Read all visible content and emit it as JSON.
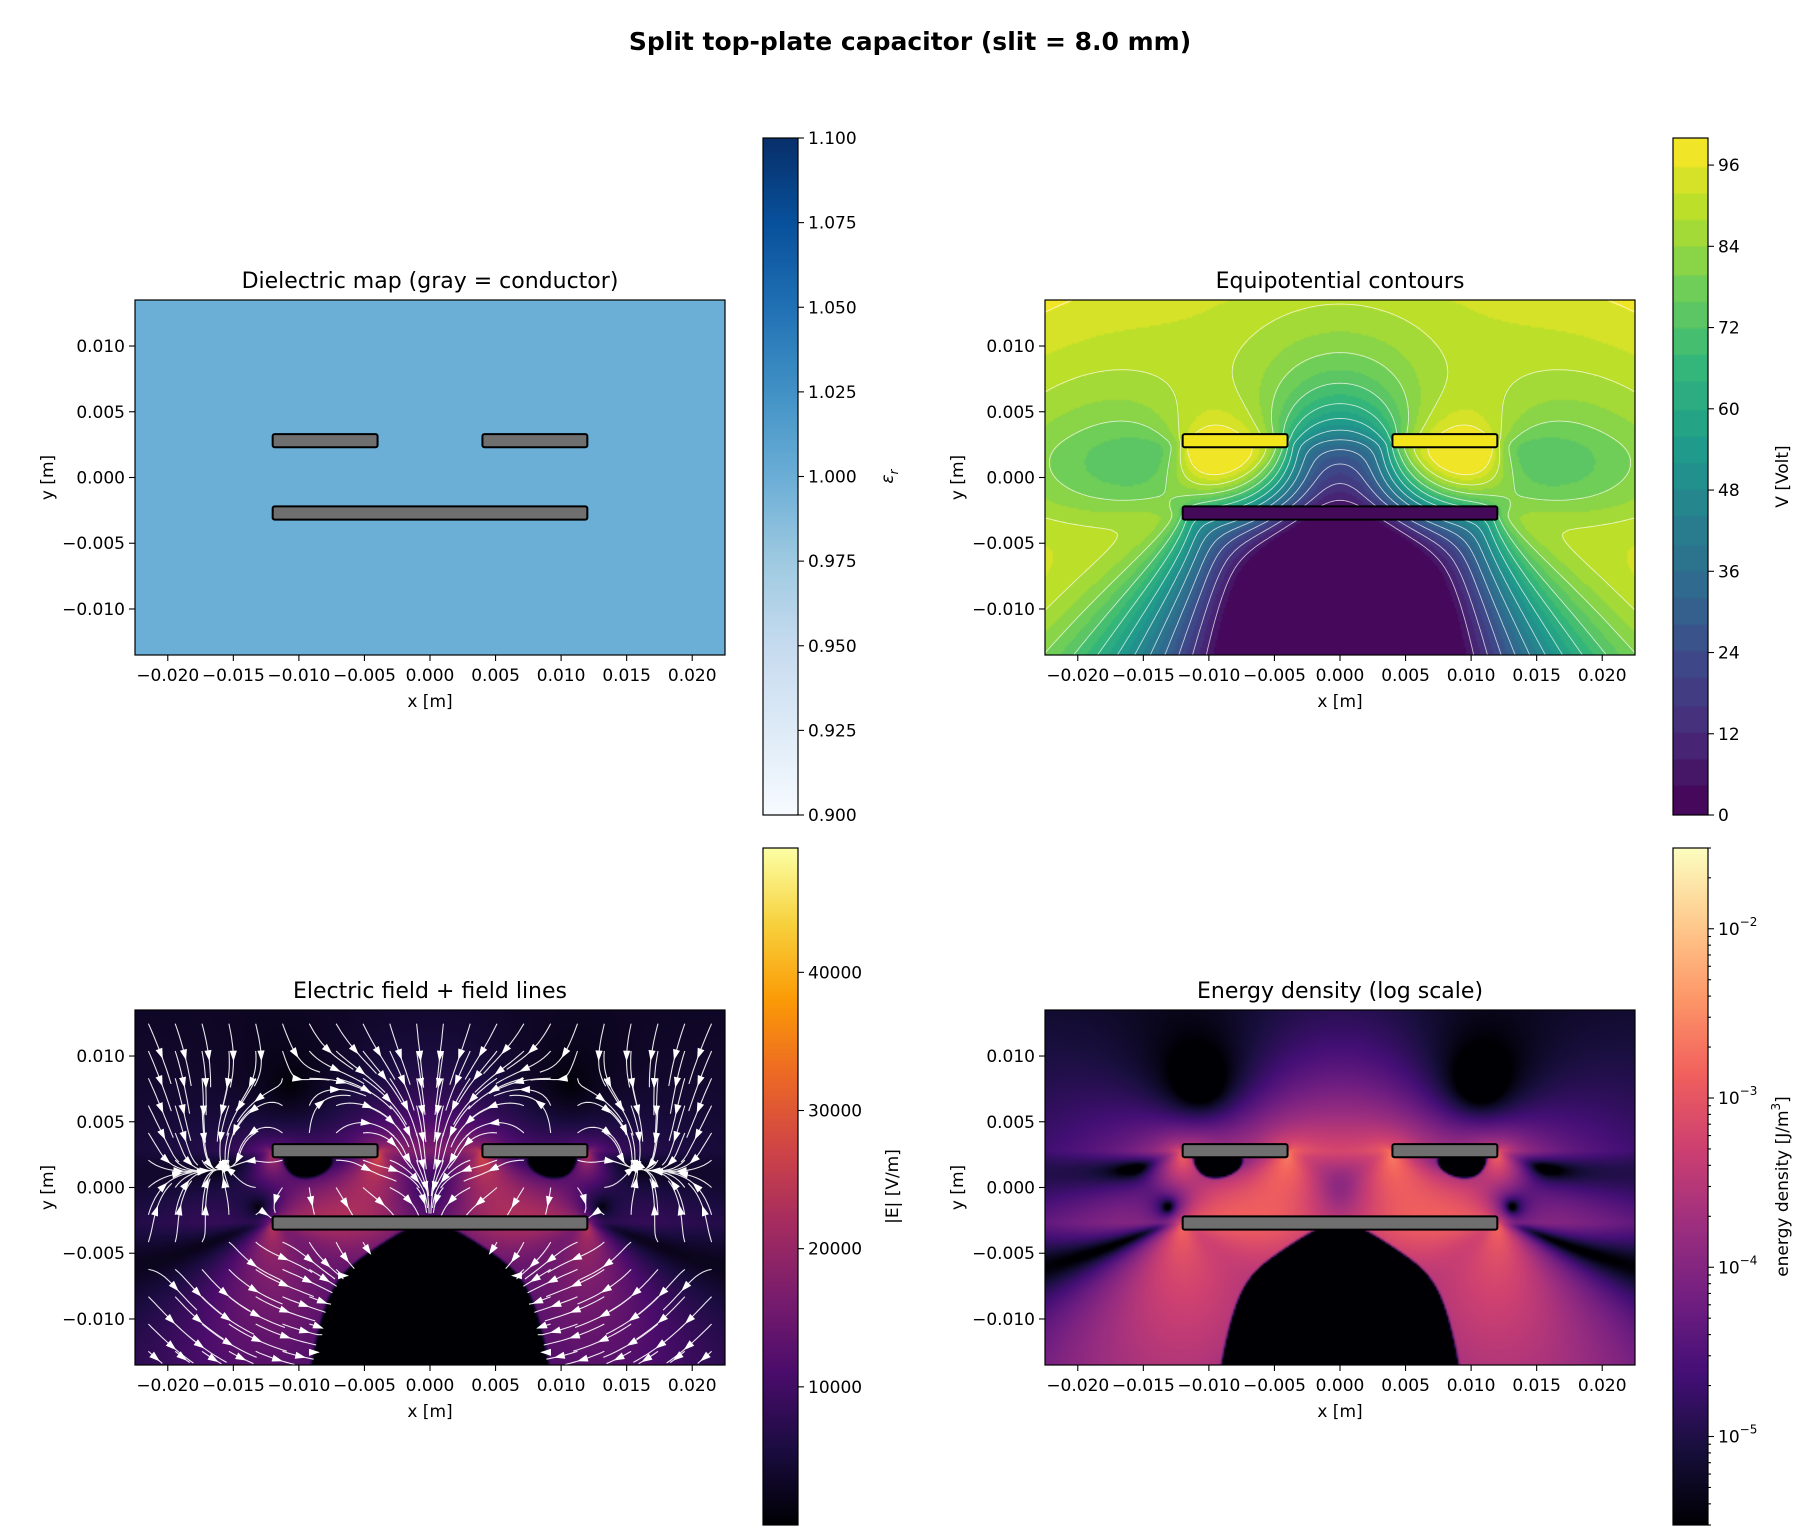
{
  "figure": {
    "title": "Split top-plate capacitor (slit = 8.0 mm)"
  },
  "chart_data": [
    {
      "id": "dielectric",
      "type": "heatmap",
      "title": "Dielectric map (gray = conductor)",
      "xlabel": "x [m]",
      "ylabel": "y [m]",
      "xlim": [
        -0.0225,
        0.0225
      ],
      "ylim": [
        -0.0135,
        0.0135
      ],
      "xticks": [
        -0.02,
        -0.015,
        -0.01,
        -0.005,
        0.0,
        0.005,
        0.01,
        0.015,
        0.02
      ],
      "xtick_labels": [
        "−0.020",
        "−0.015",
        "−0.010",
        "−0.005",
        "0.000",
        "0.005",
        "0.010",
        "0.015",
        "0.020"
      ],
      "yticks": [
        -0.01,
        -0.005,
        0.0,
        0.005,
        0.01
      ],
      "ytick_labels": [
        "−0.010",
        "−0.005",
        "0.000",
        "0.005",
        "0.010"
      ],
      "background_value": 1.0,
      "colorbar": {
        "label": "ε_r",
        "label_main": "ε",
        "label_sub": "r",
        "range": [
          0.9,
          1.1
        ],
        "ticks": [
          0.9,
          0.925,
          0.95,
          0.975,
          1.0,
          1.025,
          1.05,
          1.075,
          1.1
        ],
        "tick_labels": [
          "0.900",
          "0.925",
          "0.950",
          "0.975",
          "1.000",
          "1.025",
          "1.050",
          "1.075",
          "1.100"
        ],
        "colormap": [
          "#f7fbff",
          "#deebf7",
          "#c6dbef",
          "#9ecae1",
          "#6baed6",
          "#4292c6",
          "#2171b5",
          "#08519c",
          "#08306b"
        ]
      },
      "conductors": [
        {
          "x": [
            -0.012,
            -0.004
          ],
          "y": [
            0.0023,
            0.0033
          ]
        },
        {
          "x": [
            0.004,
            0.012
          ],
          "y": [
            0.0023,
            0.0033
          ]
        },
        {
          "x": [
            -0.012,
            0.012
          ],
          "y": [
            -0.0032,
            -0.0022
          ]
        }
      ]
    },
    {
      "id": "potential",
      "type": "heatmap",
      "title": "Equipotential contours",
      "xlabel": "x [m]",
      "ylabel": "y [m]",
      "xlim": [
        -0.0225,
        0.0225
      ],
      "ylim": [
        -0.0135,
        0.0135
      ],
      "xticks": [
        -0.02,
        -0.015,
        -0.01,
        -0.005,
        0.0,
        0.005,
        0.01,
        0.015,
        0.02
      ],
      "xtick_labels": [
        "−0.020",
        "−0.015",
        "−0.010",
        "−0.005",
        "0.000",
        "0.005",
        "0.010",
        "0.015",
        "0.020"
      ],
      "yticks": [
        -0.01,
        -0.005,
        0.0,
        0.005,
        0.01
      ],
      "ytick_labels": [
        "−0.010",
        "−0.005",
        "0.000",
        "0.005",
        "0.010"
      ],
      "top_plate_voltage": 100,
      "bottom_plate_voltage": 0,
      "colorbar": {
        "label": "V [Volt]",
        "range": [
          0,
          100
        ],
        "levels": 25,
        "ticks": [
          0,
          12,
          24,
          36,
          48,
          60,
          72,
          84,
          96
        ],
        "tick_labels": [
          "0",
          "12",
          "24",
          "36",
          "48",
          "60",
          "72",
          "84",
          "96"
        ],
        "colormap": [
          "#440154",
          "#482878",
          "#3e4989",
          "#31688e",
          "#26828e",
          "#1f9e89",
          "#35b779",
          "#6ece58",
          "#b5de2b",
          "#fde725"
        ]
      },
      "conductors": [
        {
          "x": [
            -0.012,
            -0.004
          ],
          "y": [
            0.0023,
            0.0033
          ]
        },
        {
          "x": [
            0.004,
            0.012
          ],
          "y": [
            0.0023,
            0.0033
          ]
        },
        {
          "x": [
            -0.012,
            0.012
          ],
          "y": [
            -0.0032,
            -0.0022
          ]
        }
      ]
    },
    {
      "id": "efield",
      "type": "heatmap",
      "title": "Electric field + field lines",
      "xlabel": "x [m]",
      "ylabel": "y [m]",
      "xlim": [
        -0.0225,
        0.0225
      ],
      "ylim": [
        -0.0135,
        0.0135
      ],
      "xticks": [
        -0.02,
        -0.015,
        -0.01,
        -0.005,
        0.0,
        0.005,
        0.01,
        0.015,
        0.02
      ],
      "xtick_labels": [
        "−0.020",
        "−0.015",
        "−0.010",
        "−0.005",
        "0.000",
        "0.005",
        "0.010",
        "0.015",
        "0.020"
      ],
      "yticks": [
        -0.01,
        -0.005,
        0.0,
        0.005,
        0.01
      ],
      "ytick_labels": [
        "−0.010",
        "−0.005",
        "0.000",
        "0.005",
        "0.010"
      ],
      "gap_field": 18000,
      "colorbar": {
        "label": "|E| [V/m]",
        "range": [
          0,
          49000
        ],
        "ticks": [
          10000,
          20000,
          30000,
          40000
        ],
        "tick_labels": [
          "10000",
          "20000",
          "30000",
          "40000"
        ],
        "colormap": [
          "#000004",
          "#1b0c41",
          "#4a0c6b",
          "#781c6d",
          "#a52c60",
          "#cf4446",
          "#ed6925",
          "#fb9b06",
          "#f7d13d",
          "#fcffa4"
        ]
      },
      "conductors": [
        {
          "x": [
            -0.012,
            -0.004
          ],
          "y": [
            0.0023,
            0.0033
          ]
        },
        {
          "x": [
            0.004,
            0.012
          ],
          "y": [
            0.0023,
            0.0033
          ]
        },
        {
          "x": [
            -0.012,
            0.012
          ],
          "y": [
            -0.0032,
            -0.0022
          ]
        }
      ]
    },
    {
      "id": "energy",
      "type": "heatmap",
      "title": "Energy density (log scale)",
      "xlabel": "x [m]",
      "ylabel": "y [m]",
      "xlim": [
        -0.0225,
        0.0225
      ],
      "ylim": [
        -0.0135,
        0.0135
      ],
      "xticks": [
        -0.02,
        -0.015,
        -0.01,
        -0.005,
        0.0,
        0.005,
        0.01,
        0.015,
        0.02
      ],
      "xtick_labels": [
        "−0.020",
        "−0.015",
        "−0.010",
        "−0.005",
        "0.000",
        "0.005",
        "0.010",
        "0.015",
        "0.020"
      ],
      "yticks": [
        -0.01,
        -0.005,
        0.0,
        0.005,
        0.01
      ],
      "ytick_labels": [
        "−0.010",
        "−0.005",
        "0.000",
        "0.005",
        "0.010"
      ],
      "gap_energy_density": 0.0015,
      "colorbar": {
        "label": "energy density [J/m³]",
        "label_main": "energy density [J/m",
        "label_sup": "3",
        "label_end": "]",
        "scale": "log",
        "range": [
          3e-06,
          0.03
        ],
        "ticks": [
          1e-05,
          0.0001,
          0.001,
          0.01
        ],
        "tick_mantissa": "10",
        "tick_exponents": [
          "−5",
          "−4",
          "−3",
          "−2"
        ],
        "colormap": [
          "#000004",
          "#180f3d",
          "#440f76",
          "#721f81",
          "#9e2f7f",
          "#cd4071",
          "#f1605d",
          "#fd9668",
          "#feca8d",
          "#fcfdbf"
        ]
      },
      "conductors": [
        {
          "x": [
            -0.012,
            -0.004
          ],
          "y": [
            0.0023,
            0.0033
          ]
        },
        {
          "x": [
            0.004,
            0.012
          ],
          "y": [
            0.0023,
            0.0033
          ]
        },
        {
          "x": [
            -0.012,
            0.012
          ],
          "y": [
            -0.0032,
            -0.0022
          ]
        }
      ]
    }
  ]
}
